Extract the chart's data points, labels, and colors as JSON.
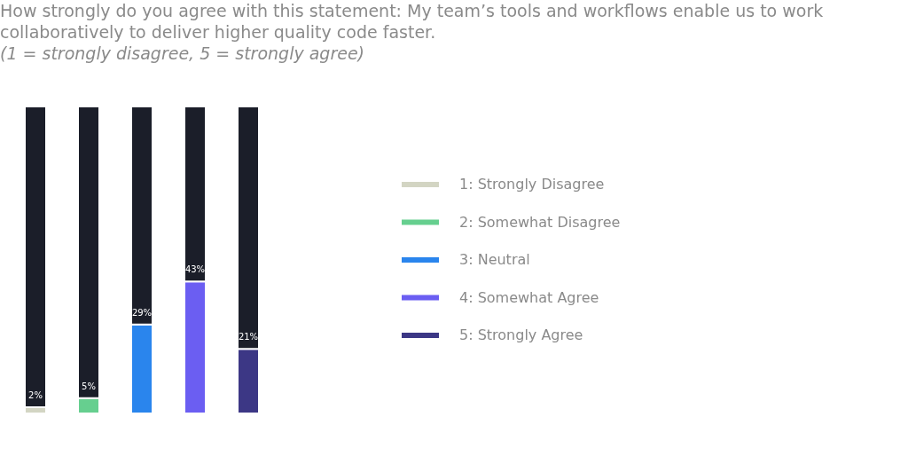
{
  "chart_data": {
    "type": "bar",
    "title": "How strongly do you agree with this statement: My team’s tools and workflows enable us to work collaboratively to deliver higher quality code faster.",
    "subtitle": "(1 = strongly disagree, 5 = strongly agree)",
    "categories": [
      null,
      null,
      null,
      null,
      null
    ],
    "stacked": true,
    "series": [
      {
        "name": "1: Strongly Disagree",
        "color": "#d3d5c3",
        "values": [
          2,
          null,
          null,
          null,
          null
        ],
        "value_labels": [
          "2%",
          null,
          null,
          null,
          null
        ]
      },
      {
        "name": "2: Somewhat Disagree",
        "color": "#66cf8f",
        "values": [
          null,
          5,
          null,
          null,
          null
        ],
        "value_labels": [
          null,
          "5%",
          null,
          null,
          null
        ]
      },
      {
        "name": "3: Neutral",
        "color": "#2a85ed",
        "values": [
          null,
          null,
          29,
          null,
          null
        ],
        "value_labels": [
          null,
          null,
          "29%",
          null,
          null
        ]
      },
      {
        "name": "4: Somewhat Agree",
        "color": "#6b5ef2",
        "values": [
          null,
          null,
          null,
          43,
          null
        ],
        "value_labels": [
          null,
          null,
          null,
          "43%",
          null
        ]
      },
      {
        "name": "5: Strongly Agree",
        "color": "#3c3785",
        "values": [
          null,
          null,
          null,
          null,
          21
        ],
        "value_labels": [
          null,
          null,
          null,
          null,
          "21%"
        ]
      },
      {
        "color": "#1b1e29",
        "values": [
          98,
          95,
          71,
          57,
          79
        ]
      }
    ],
    "ylim": [
      0,
      100
    ],
    "tick_labels": false,
    "legend": "right"
  }
}
